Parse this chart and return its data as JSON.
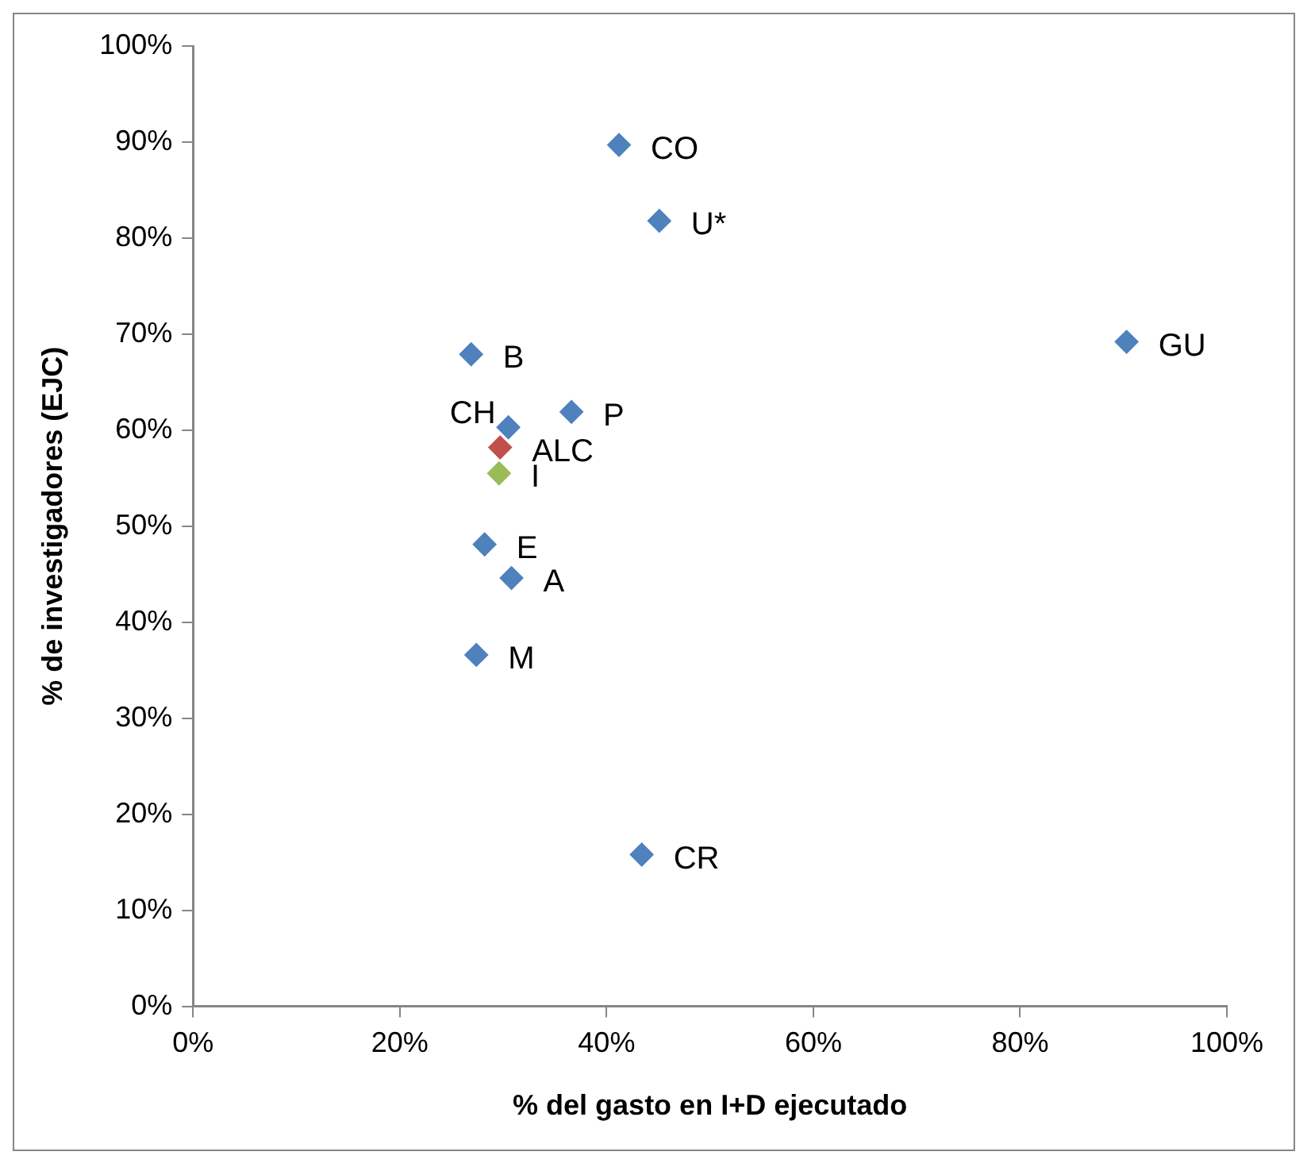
{
  "chart_data": {
    "type": "scatter",
    "xlabel": "% del gasto en I+D ejecutado",
    "ylabel": "% de investigadores (EJC)",
    "x": [
      41.2,
      45.1,
      90.3,
      26.9,
      36.6,
      30.5,
      29.7,
      29.6,
      28.2,
      30.8,
      27.4,
      43.4
    ],
    "values": [
      89.7,
      81.8,
      69.2,
      67.9,
      61.9,
      60.3,
      58.2,
      55.5,
      48.1,
      44.6,
      36.6,
      15.8
    ],
    "colors": [
      "#4f81bd",
      "#4f81bd",
      "#4f81bd",
      "#4f81bd",
      "#4f81bd",
      "#4f81bd",
      "#c0504d",
      "#9bbb59",
      "#4f81bd",
      "#4f81bd",
      "#4f81bd",
      "#4f81bd"
    ],
    "marker": "diamond",
    "xlim": [
      0,
      100
    ],
    "xticks": [
      {
        "value": 0,
        "label": "0%"
      },
      {
        "value": 20,
        "label": "20%"
      },
      {
        "value": 40,
        "label": "40%"
      },
      {
        "value": 60,
        "label": "60%"
      },
      {
        "value": 80,
        "label": "80%"
      },
      {
        "value": 100,
        "label": "100%"
      }
    ],
    "ylim": [
      0,
      100
    ],
    "yticks": [
      {
        "value": 0,
        "label": "0%"
      },
      {
        "value": 10,
        "label": "10%"
      },
      {
        "value": 20,
        "label": "20%"
      },
      {
        "value": 30,
        "label": "30%"
      },
      {
        "value": 40,
        "label": "40%"
      },
      {
        "value": 50,
        "label": "50%"
      },
      {
        "value": 60,
        "label": "60%"
      },
      {
        "value": 70,
        "label": "70%"
      },
      {
        "value": 80,
        "label": "80%"
      },
      {
        "value": 90,
        "label": "90%"
      },
      {
        "value": 100,
        "label": "100%"
      }
    ],
    "grid": false,
    "legend": false,
    "annotations": [
      {
        "text": "CO",
        "x": 41.2,
        "y": 89.7
      },
      {
        "text": "U*",
        "x": 45.1,
        "y": 81.8
      },
      {
        "text": "GU",
        "x": 90.3,
        "y": 69.2
      },
      {
        "text": "B",
        "x": 26.9,
        "y": 67.9
      },
      {
        "text": "P",
        "x": 36.6,
        "y": 61.9
      },
      {
        "text": "CH",
        "x": 30.5,
        "y": 60.3
      },
      {
        "text": "ALC",
        "x": 29.7,
        "y": 58.2
      },
      {
        "text": "I",
        "x": 29.6,
        "y": 55.5
      },
      {
        "text": "E",
        "x": 28.2,
        "y": 48.1
      },
      {
        "text": "A",
        "x": 30.8,
        "y": 44.6
      },
      {
        "text": "M",
        "x": 27.4,
        "y": 36.6
      },
      {
        "text": "CR",
        "x": 43.4,
        "y": 15.8
      }
    ]
  }
}
